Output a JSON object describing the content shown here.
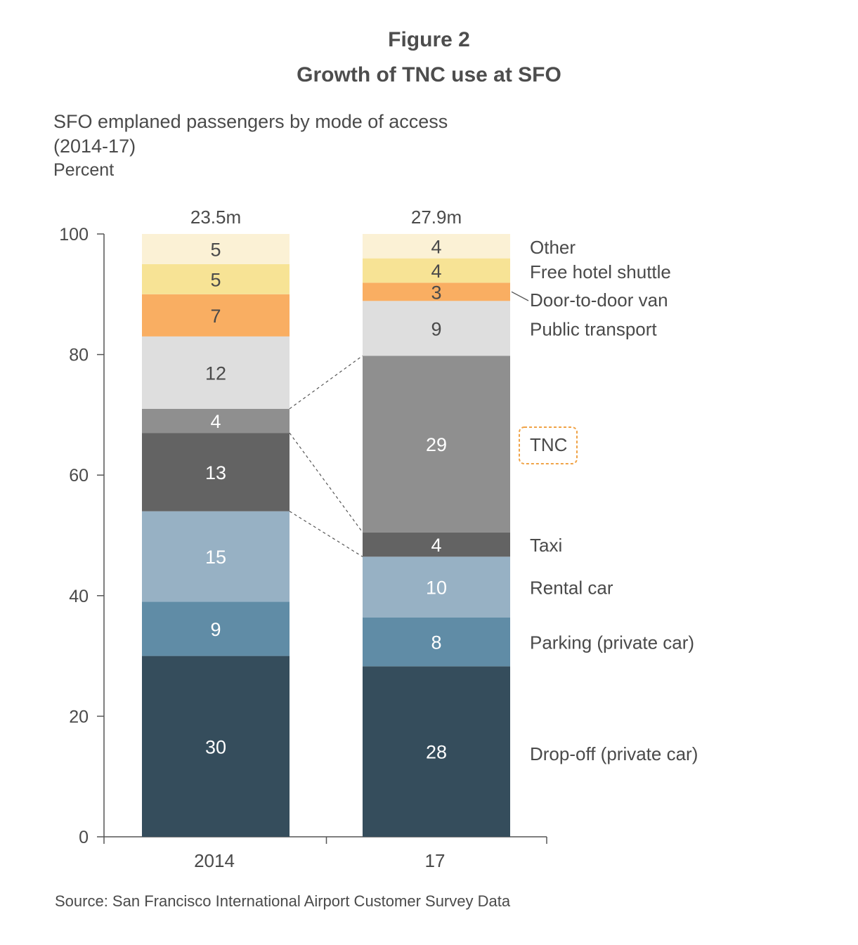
{
  "figure_label": "Figure 2",
  "title": "Growth of TNC use at SFO",
  "subtitle_line1": "SFO emplaned passengers by mode of access",
  "subtitle_line2": "(2014-17)",
  "unit": "Percent",
  "source": "Source:  San Francisco International Airport Customer Survey Data",
  "chart_data": {
    "type": "bar",
    "stacked": true,
    "categories": [
      "2014",
      "17"
    ],
    "totals": [
      "23.5m",
      "27.9m"
    ],
    "ylim": [
      0,
      100
    ],
    "yticks": [
      0,
      20,
      40,
      60,
      80,
      100
    ],
    "series": [
      {
        "name": "Drop-off (private car)",
        "values": [
          30,
          28
        ],
        "color": "#354d5c"
      },
      {
        "name": "Parking (private car)",
        "values": [
          9,
          8
        ],
        "color": "#608ca6"
      },
      {
        "name": "Rental car",
        "values": [
          15,
          10
        ],
        "color": "#97b1c4"
      },
      {
        "name": "Taxi",
        "values": [
          13,
          4
        ],
        "color": "#636363"
      },
      {
        "name": "TNC",
        "values": [
          4,
          29
        ],
        "color": "#8f8f8f",
        "highlight": true
      },
      {
        "name": "Public transport",
        "values": [
          12,
          9
        ],
        "color": "#dedede"
      },
      {
        "name": "Door-to-door van",
        "values": [
          7,
          3
        ],
        "color": "#f9ae62"
      },
      {
        "name": "Free hotel shuttle",
        "values": [
          5,
          4
        ],
        "color": "#f7e395"
      },
      {
        "name": "Other",
        "values": [
          5,
          4
        ],
        "color": "#fbf1d5"
      }
    ],
    "highlight_color": "#f0a347"
  }
}
